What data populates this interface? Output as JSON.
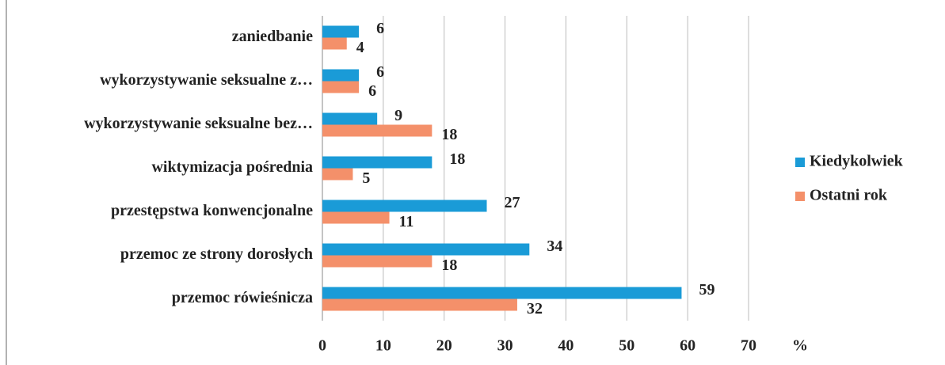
{
  "chart_data": {
    "type": "bar",
    "orientation": "horizontal",
    "categories": [
      "zaniedbanie",
      "wykorzystywanie seksualne z…",
      "wykorzystywanie seksualne bez…",
      "wiktymizacja pośrednia",
      "przestępstwa konwencjonalne",
      "przemoc ze strony dorosłych",
      "przemoc rówieśnicza"
    ],
    "series": [
      {
        "name": "Kiedykolwiek",
        "color": "#1a9bd7",
        "values": [
          6,
          6,
          9,
          18,
          27,
          34,
          59
        ]
      },
      {
        "name": "Ostatni rok",
        "color": "#f4906a",
        "values": [
          4,
          6,
          18,
          5,
          11,
          18,
          32
        ]
      }
    ],
    "xlabel": "%",
    "xlim": [
      0,
      70
    ],
    "xticks": [
      0,
      10,
      20,
      30,
      40,
      50,
      60,
      70
    ],
    "grid": true,
    "legend": "right"
  }
}
